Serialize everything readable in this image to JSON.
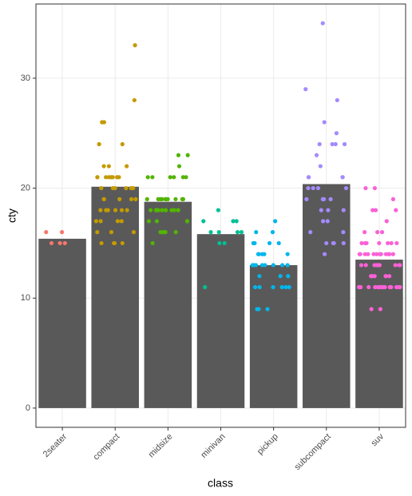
{
  "chart_data": {
    "type": "bar",
    "x_label": "class",
    "y_label": "cty",
    "categories": [
      "2seater",
      "compact",
      "midsize",
      "minivan",
      "pickup",
      "subcompact",
      "suv"
    ],
    "values": [
      15.4,
      20.13,
      18.76,
      15.82,
      13.0,
      20.37,
      13.5
    ],
    "color": "#595959",
    "points": [
      [
        16,
        15,
        16,
        15,
        15
      ],
      [
        18,
        21,
        20,
        21,
        16,
        18,
        18,
        18,
        16,
        20,
        19,
        15,
        17,
        17,
        15,
        15,
        17,
        16,
        33,
        24,
        21,
        28,
        26,
        21,
        21,
        24,
        21,
        20,
        19,
        20,
        22,
        21,
        18,
        18,
        22,
        22,
        21,
        21,
        20,
        26,
        19,
        15,
        19,
        19,
        21,
        20,
        17
      ],
      [
        15,
        18,
        19,
        18,
        17,
        16,
        19,
        18,
        17,
        16,
        19,
        19,
        18,
        19,
        18,
        16,
        18,
        17,
        18,
        21,
        19,
        22,
        21,
        23,
        21,
        19,
        23,
        21,
        21,
        21,
        19,
        18,
        18,
        16,
        16,
        18,
        18,
        17,
        19,
        19,
        18
      ],
      [
        18,
        17,
        16,
        16,
        17,
        15,
        15,
        11,
        17,
        16,
        16
      ],
      [
        15,
        14,
        13,
        11,
        12,
        11,
        14,
        13,
        11,
        13,
        13,
        15,
        17,
        14,
        12,
        9,
        13,
        15,
        14,
        11,
        11,
        9,
        13,
        13,
        11,
        14,
        12,
        13,
        15,
        16,
        15,
        9,
        16
      ],
      [
        35,
        29,
        28,
        26,
        25,
        24,
        24,
        24,
        24,
        23,
        22,
        21,
        21,
        21,
        20,
        20,
        20,
        19,
        19,
        19,
        18,
        18,
        18,
        17,
        17,
        16,
        16,
        15,
        15,
        15,
        15,
        14,
        20,
        21,
        19
      ],
      [
        15,
        15,
        15,
        15,
        14,
        11,
        11,
        14,
        14,
        13,
        13,
        11,
        12,
        12,
        11,
        11,
        11,
        13,
        13,
        14,
        14,
        14,
        11,
        13,
        12,
        16,
        17,
        15,
        15,
        9,
        9,
        11,
        11,
        14,
        14,
        13,
        13,
        14,
        14,
        12,
        12,
        11,
        11,
        20,
        19,
        20,
        18,
        18,
        18,
        16,
        15,
        14,
        13,
        11,
        11,
        13,
        12,
        11,
        11,
        14,
        16,
        11
      ]
    ],
    "point_colors": [
      "#F8766D",
      "#C49A00",
      "#53B400",
      "#00C094",
      "#00B6EB",
      "#A58AFF",
      "#FB61D7"
    ],
    "ylim": [
      -1.75,
      36.75
    ],
    "yticks": [
      0,
      10,
      20,
      30
    ],
    "grid": true
  }
}
